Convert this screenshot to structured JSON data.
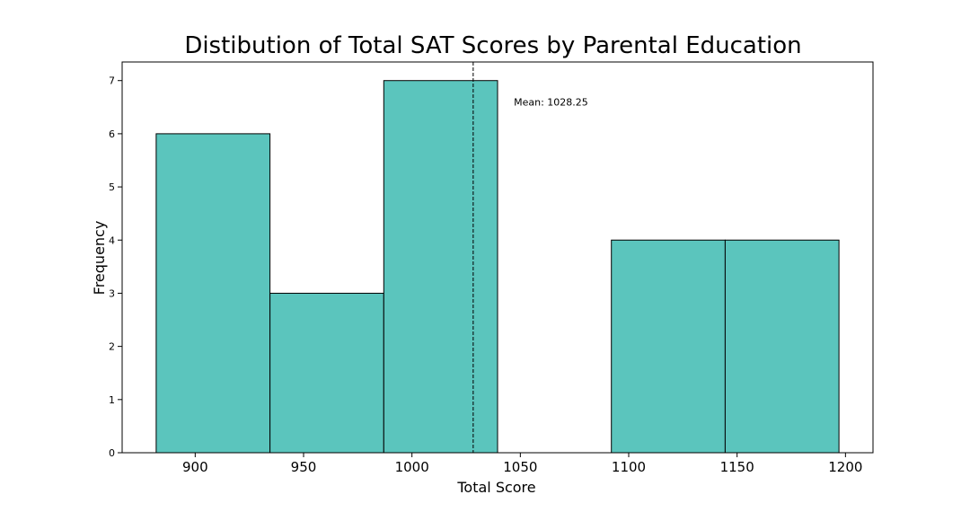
{
  "chart_data": {
    "type": "bar",
    "title": "Distibution of Total SAT Scores by Parental Education",
    "xlabel": "Total Score",
    "ylabel": "Frequency",
    "bins": [
      {
        "start": 882.0,
        "end": 934.5,
        "count": 6
      },
      {
        "start": 934.5,
        "end": 987.0,
        "count": 3
      },
      {
        "start": 987.0,
        "end": 1039.5,
        "count": 7
      },
      {
        "start": 1039.5,
        "end": 1092.0,
        "count": 0
      },
      {
        "start": 1092.0,
        "end": 1144.5,
        "count": 4
      },
      {
        "start": 1144.5,
        "end": 1197.0,
        "count": 4
      }
    ],
    "xlim": [
      866.3,
      1212.7
    ],
    "ylim": [
      0,
      7.35
    ],
    "xticks": [
      900,
      950,
      1000,
      1050,
      1100,
      1150,
      1200
    ],
    "yticks": [
      0,
      1,
      2,
      3,
      4,
      5,
      6,
      7
    ],
    "mean": 1028.25,
    "mean_label": "Mean: 1028.25",
    "bar_color": "#5bc5bd",
    "edge_color": "#000000",
    "grid": false
  }
}
